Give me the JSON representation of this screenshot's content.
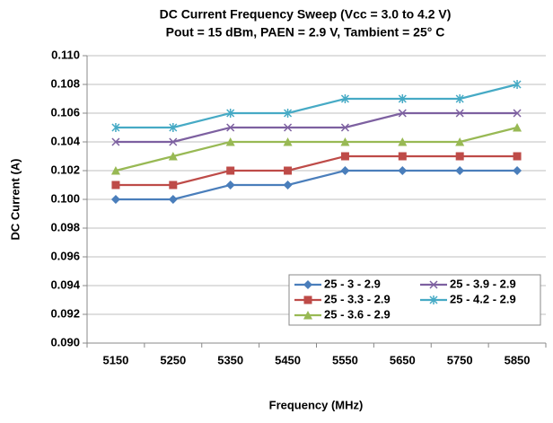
{
  "chart_data": {
    "type": "line",
    "title": "DC Current Frequency Sweep (Vcc = 3.0 to 4.2 V)",
    "subtitle": "Pout = 15 dBm, PAEN = 2.9 V, Tambient = 25° C",
    "x_label": "Frequency (MHz)",
    "y_label": "DC Current (A)",
    "categories": [
      "5150",
      "5250",
      "5350",
      "5450",
      "5550",
      "5650",
      "5750",
      "5850"
    ],
    "ylim": [
      0.09,
      0.11
    ],
    "yticks": [
      {
        "value": 0.09,
        "label": "0.090"
      },
      {
        "value": 0.092,
        "label": "0.092"
      },
      {
        "value": 0.094,
        "label": "0.094"
      },
      {
        "value": 0.096,
        "label": "0.096"
      },
      {
        "value": 0.098,
        "label": "0.098"
      },
      {
        "value": 0.1,
        "label": "0.100"
      },
      {
        "value": 0.102,
        "label": "0.102"
      },
      {
        "value": 0.104,
        "label": "0.104"
      },
      {
        "value": 0.106,
        "label": "0.106"
      },
      {
        "value": 0.108,
        "label": "0.108"
      },
      {
        "value": 0.11,
        "label": "0.110"
      }
    ],
    "grid": true,
    "legend": "bottom-right",
    "series": [
      {
        "name": "25 - 3 - 2.9",
        "color": "#4a7ebb",
        "marker": "diamond",
        "values": [
          0.1,
          0.1,
          0.101,
          0.101,
          0.102,
          0.102,
          0.102,
          0.102
        ]
      },
      {
        "name": "25 - 3.3 - 2.9",
        "color": "#be4b48",
        "marker": "square",
        "values": [
          0.101,
          0.101,
          0.102,
          0.102,
          0.103,
          0.103,
          0.103,
          0.103
        ]
      },
      {
        "name": "25 - 3.6 - 2.9",
        "color": "#98b954",
        "marker": "triangle",
        "values": [
          0.102,
          0.103,
          0.104,
          0.104,
          0.104,
          0.104,
          0.104,
          0.105
        ]
      },
      {
        "name": "25 - 3.9 - 2.9",
        "color": "#7d60a0",
        "marker": "x",
        "values": [
          0.104,
          0.104,
          0.105,
          0.105,
          0.105,
          0.106,
          0.106,
          0.106
        ]
      },
      {
        "name": "25 - 4.2 - 2.9",
        "color": "#46aac5",
        "marker": "asterisk",
        "values": [
          0.105,
          0.105,
          0.106,
          0.106,
          0.107,
          0.107,
          0.107,
          0.108
        ]
      }
    ]
  }
}
